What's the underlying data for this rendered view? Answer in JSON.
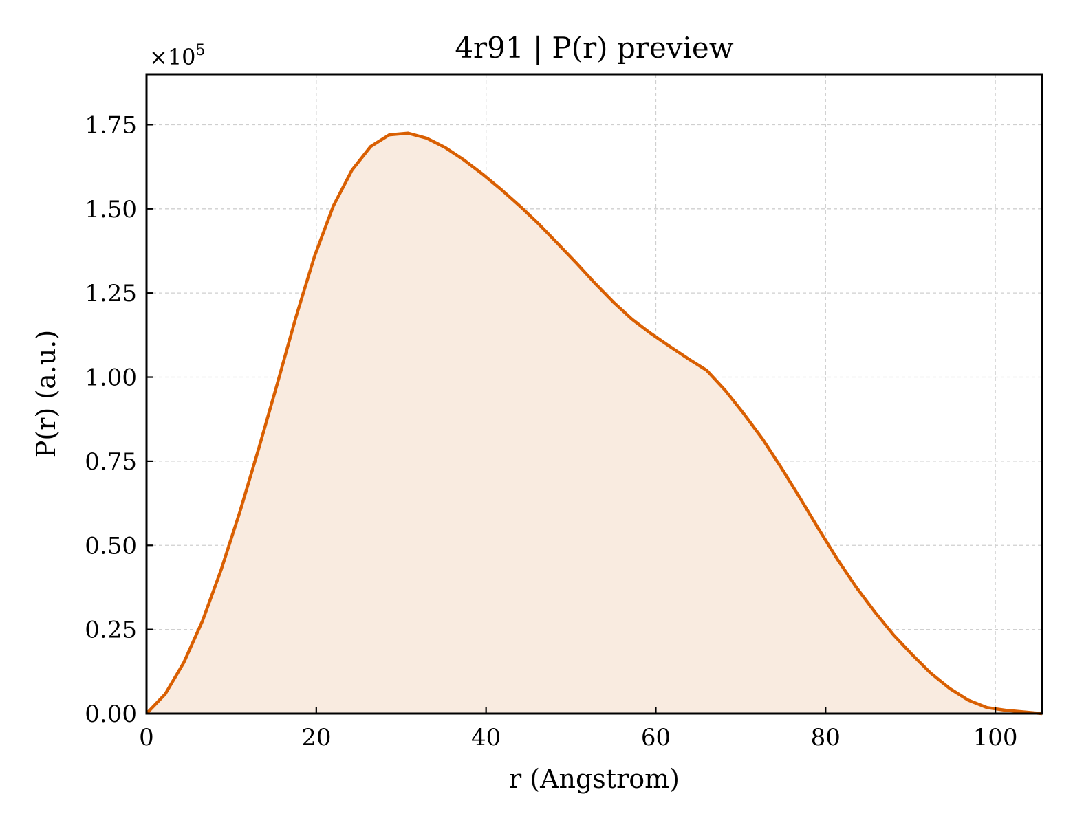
{
  "chart_data": {
    "type": "area",
    "title": "4r91 | P(r) preview",
    "xlabel": "r (Angstrom)",
    "ylabel": "P(r) (a.u.)",
    "y_scale_label": "×10",
    "y_scale_exponent": "5",
    "xlim": [
      0,
      105.5
    ],
    "ylim": [
      0,
      1.9
    ],
    "x_ticks": [
      0,
      20,
      40,
      60,
      80,
      100
    ],
    "x_tick_labels": [
      "0",
      "20",
      "40",
      "60",
      "80",
      "100"
    ],
    "y_ticks": [
      0,
      0.25,
      0.5,
      0.75,
      1.0,
      1.25,
      1.5,
      1.75
    ],
    "y_tick_labels": [
      "0.00",
      "0.25",
      "0.50",
      "0.75",
      "1.00",
      "1.25",
      "1.50",
      "1.75"
    ],
    "grid": true,
    "line_color": "#d95f02",
    "fill_color": "#f9ebe0",
    "series": [
      {
        "x": [
          0,
          2.2,
          4.4,
          6.6,
          8.8,
          11.0,
          13.2,
          15.4,
          17.6,
          19.8,
          22.0,
          24.2,
          26.4,
          28.6,
          30.8,
          33.0,
          35.2,
          37.4,
          39.6,
          41.8,
          44.0,
          46.2,
          48.4,
          50.6,
          52.8,
          55.0,
          57.2,
          59.4,
          61.6,
          63.8,
          66.0,
          68.2,
          70.4,
          72.6,
          74.8,
          77.0,
          79.2,
          81.4,
          83.6,
          85.8,
          88.0,
          90.2,
          92.4,
          94.6,
          96.8,
          99.0,
          101.2,
          103.4,
          105.5
        ],
        "y": [
          0.0,
          0.058,
          0.152,
          0.276,
          0.428,
          0.6,
          0.786,
          0.98,
          1.178,
          1.36,
          1.508,
          1.615,
          1.685,
          1.72,
          1.725,
          1.71,
          1.682,
          1.645,
          1.603,
          1.557,
          1.508,
          1.455,
          1.398,
          1.34,
          1.28,
          1.223,
          1.172,
          1.13,
          1.092,
          1.055,
          1.02,
          0.96,
          0.89,
          0.815,
          0.73,
          0.64,
          0.548,
          0.458,
          0.376,
          0.302,
          0.234,
          0.175,
          0.12,
          0.075,
          0.04,
          0.018,
          0.01,
          0.005,
          0.0
        ]
      }
    ]
  }
}
